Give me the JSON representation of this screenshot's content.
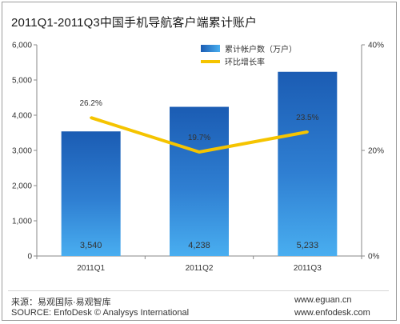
{
  "title": "2011Q1-2011Q3中国手机导航客户端累计账户",
  "footer": {
    "source_cn": "来源：易观国际·易观智库",
    "source_en": "SOURCE: EnfoDesk © Analysys International",
    "url1": "www.eguan.cn",
    "url2": "www.enfodesk.com"
  },
  "chart_data": {
    "type": "bar",
    "categories": [
      "2011Q1",
      "2011Q2",
      "2011Q3"
    ],
    "series": [
      {
        "name": "累计帐户数（万户）",
        "type": "bar",
        "axis": "left",
        "values": [
          3540,
          4238,
          5233
        ],
        "labels": [
          "3,540",
          "4,238",
          "5,233"
        ],
        "color": "#2f79c9"
      },
      {
        "name": "环比增长率",
        "type": "line",
        "axis": "right",
        "values": [
          26.2,
          19.7,
          23.5
        ],
        "labels": [
          "26.2%",
          "19.7%",
          "23.5%"
        ],
        "color": "#f5c400"
      }
    ],
    "y_left": {
      "ylim": [
        0,
        6000
      ],
      "ticks": [
        0,
        1000,
        2000,
        3000,
        4000,
        5000,
        6000
      ],
      "tick_labels": [
        "0",
        "1,000",
        "2,000",
        "3,000",
        "4,000",
        "5,000",
        "6,000"
      ]
    },
    "y_right": {
      "ylim": [
        0,
        40
      ],
      "ticks": [
        0,
        20,
        40
      ],
      "tick_labels": [
        "0%",
        "20%",
        "40%"
      ]
    },
    "legend_position": "top-center",
    "grid": false
  }
}
